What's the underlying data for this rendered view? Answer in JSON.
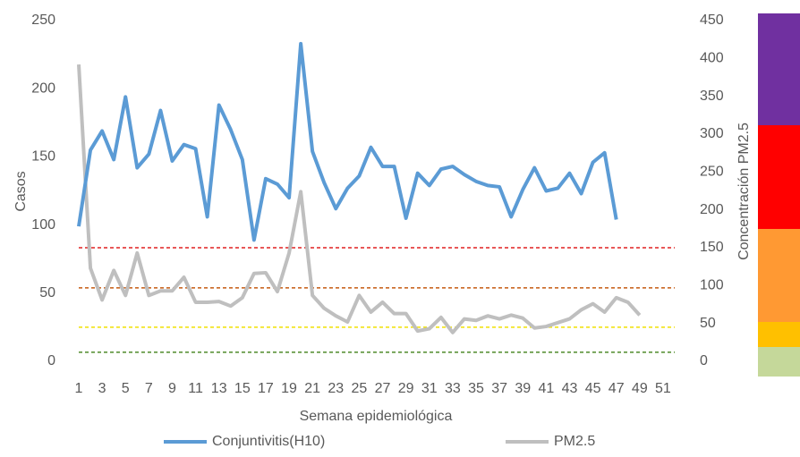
{
  "chart_data": {
    "type": "line",
    "x": [
      1,
      2,
      3,
      4,
      5,
      6,
      7,
      8,
      9,
      10,
      11,
      12,
      13,
      14,
      15,
      16,
      17,
      18,
      19,
      20,
      21,
      22,
      23,
      24,
      25,
      26,
      27,
      28,
      29,
      30,
      31,
      32,
      33,
      34,
      35,
      36,
      37,
      38,
      39,
      40,
      41,
      42,
      43,
      44,
      45,
      46,
      47,
      48,
      49
    ],
    "xlim": [
      1,
      52
    ],
    "xticks": [
      1,
      3,
      5,
      7,
      9,
      11,
      13,
      15,
      17,
      19,
      21,
      23,
      25,
      27,
      29,
      31,
      33,
      35,
      37,
      39,
      41,
      43,
      45,
      47,
      49,
      51
    ],
    "ylim": [
      0,
      250
    ],
    "yticks": [
      0,
      50,
      100,
      150,
      200,
      250
    ],
    "y2lim": [
      0,
      450
    ],
    "y2ticks": [
      0,
      50,
      100,
      150,
      200,
      250,
      300,
      350,
      400,
      450
    ],
    "xlabel": "Semana epidemiológica",
    "ylabel": "Casos",
    "y2label": "Concentración PM2.5",
    "reference_lines": [
      {
        "value": 150,
        "color": "#e02020"
      },
      {
        "value": 97,
        "color": "#c55a11"
      },
      {
        "value": 45,
        "color": "#f0e000"
      },
      {
        "value": 12,
        "color": "#4e8a2a"
      }
    ],
    "series": [
      {
        "name": "Conjuntivitis(H10)",
        "color": "#5b9bd5",
        "values": [
          99,
          155,
          169,
          148,
          194,
          142,
          152,
          184,
          147,
          159,
          156,
          106,
          188,
          170,
          148,
          89,
          134,
          130,
          120,
          233,
          154,
          131,
          112,
          127,
          136,
          157,
          143,
          143,
          105,
          138,
          129,
          141,
          143,
          137,
          132,
          129,
          128,
          106,
          126,
          142,
          125,
          127,
          138,
          123,
          146,
          153,
          104,
          null,
          null
        ]
      },
      {
        "name": "PM2.5",
        "color": "#bfbfbf",
        "axis": "y2",
        "values": [
          392,
          123,
          81,
          120,
          87,
          143,
          87,
          93,
          93,
          111,
          78,
          78,
          79,
          73,
          84,
          116,
          117,
          92,
          143,
          224,
          87,
          70,
          60,
          52,
          87,
          65,
          78,
          63,
          63,
          40,
          43,
          58,
          38,
          56,
          54,
          60,
          56,
          61,
          57,
          44,
          46,
          51,
          56,
          68,
          76,
          65,
          84,
          78,
          61
        ]
      }
    ]
  }
}
